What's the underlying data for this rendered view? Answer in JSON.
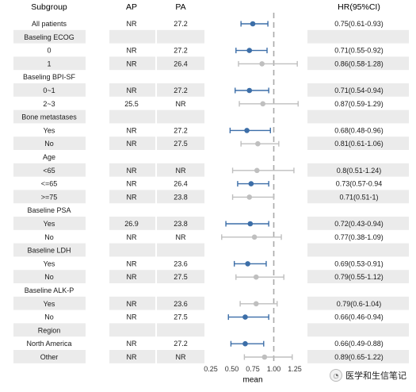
{
  "chart_data": {
    "type": "forest",
    "headers": {
      "subgroup": "Subgroup",
      "ap": "AP",
      "pa": "PA",
      "hr": "HR(95%CI)"
    },
    "xlabel": "mean",
    "xlim": [
      0.2,
      1.32
    ],
    "xticks": [
      0.25,
      0.5,
      0.75,
      1.0,
      1.25
    ],
    "xtick_labels": [
      "0.25",
      "0.50",
      "0.75",
      "1.00",
      "1.25"
    ],
    "reference_line": 1.0,
    "colors": {
      "significant": "#3c6ea8",
      "nonsignificant": "#bfbfbf",
      "band": "#ebebeb",
      "refline": "#a9a9a9"
    },
    "rows": [
      {
        "label": "All patients",
        "indent": true,
        "ap": "NR",
        "pa": "27.2",
        "hr": 0.75,
        "lo": 0.61,
        "hi": 0.93,
        "hr_text": "0.75(0.61-0.93)",
        "sig": true
      },
      {
        "label": "Baseling ECOG",
        "group": true
      },
      {
        "label": "0",
        "indent": true,
        "ap": "NR",
        "pa": "27.2",
        "hr": 0.71,
        "lo": 0.55,
        "hi": 0.92,
        "hr_text": "0.71(0.55-0.92)",
        "sig": true
      },
      {
        "label": "1",
        "indent": true,
        "ap": "NR",
        "pa": "26.4",
        "hr": 0.86,
        "lo": 0.58,
        "hi": 1.28,
        "hr_text": "0.86(0.58-1.28)",
        "sig": false
      },
      {
        "label": "Baseling BPI-SF",
        "group": true
      },
      {
        "label": "0~1",
        "indent": true,
        "ap": "NR",
        "pa": "27.2",
        "hr": 0.71,
        "lo": 0.54,
        "hi": 0.94,
        "hr_text": "0.71(0.54-0.94)",
        "sig": true
      },
      {
        "label": "2~3",
        "indent": true,
        "ap": "25.5",
        "pa": "NR",
        "hr": 0.87,
        "lo": 0.59,
        "hi": 1.29,
        "hr_text": "0.87(0.59-1.29)",
        "sig": false
      },
      {
        "label": "Bone metastases",
        "group": true
      },
      {
        "label": "Yes",
        "indent": true,
        "ap": "NR",
        "pa": "27.2",
        "hr": 0.68,
        "lo": 0.48,
        "hi": 0.96,
        "hr_text": "0.68(0.48-0.96)",
        "sig": true
      },
      {
        "label": "No",
        "indent": true,
        "ap": "NR",
        "pa": "27.5",
        "hr": 0.81,
        "lo": 0.61,
        "hi": 1.06,
        "hr_text": "0.81(0.61-1.06)",
        "sig": false
      },
      {
        "label": "Age",
        "group": true
      },
      {
        "label": "<65",
        "indent": true,
        "ap": "NR",
        "pa": "NR",
        "hr": 0.8,
        "lo": 0.51,
        "hi": 1.24,
        "hr_text": "0.8(0.51-1.24)",
        "sig": false
      },
      {
        "label": "<=65",
        "indent": true,
        "ap": "NR",
        "pa": "26.4",
        "hr": 0.73,
        "lo": 0.57,
        "hi": 0.94,
        "hr_text": "0.73(0.57-0.94",
        "sig": true
      },
      {
        "label": ">=75",
        "indent": true,
        "ap": "NR",
        "pa": "23.8",
        "hr": 0.71,
        "lo": 0.51,
        "hi": 1.0,
        "hr_text": "0.71(0.51-1)",
        "sig": false
      },
      {
        "label": "Baseline PSA",
        "group": true
      },
      {
        "label": "Yes",
        "indent": true,
        "ap": "26.9",
        "pa": "23.8",
        "hr": 0.72,
        "lo": 0.43,
        "hi": 0.94,
        "hr_text": "0.72(0.43-0.94)",
        "sig": true
      },
      {
        "label": "No",
        "indent": true,
        "ap": "NR",
        "pa": "NR",
        "hr": 0.77,
        "lo": 0.38,
        "hi": 1.09,
        "hr_text": "0.77(0.38-1.09)",
        "sig": false
      },
      {
        "label": "Baseline LDH",
        "group": true
      },
      {
        "label": "Yes",
        "indent": true,
        "ap": "NR",
        "pa": "23.6",
        "hr": 0.69,
        "lo": 0.53,
        "hi": 0.91,
        "hr_text": "0.69(0.53-0.91)",
        "sig": true
      },
      {
        "label": "No",
        "indent": true,
        "ap": "NR",
        "pa": "27.5",
        "hr": 0.79,
        "lo": 0.55,
        "hi": 1.12,
        "hr_text": "0.79(0.55-1.12)",
        "sig": false
      },
      {
        "label": "Baseline ALK-P",
        "group": true
      },
      {
        "label": "Yes",
        "indent": true,
        "ap": "NR",
        "pa": "23.6",
        "hr": 0.79,
        "lo": 0.6,
        "hi": 1.04,
        "hr_text": "0.79(0.6-1.04)",
        "sig": false
      },
      {
        "label": "No",
        "indent": true,
        "ap": "NR",
        "pa": "27.5",
        "hr": 0.66,
        "lo": 0.46,
        "hi": 0.94,
        "hr_text": "0.66(0.46-0.94)",
        "sig": true
      },
      {
        "label": "Region",
        "group": true
      },
      {
        "label": "North America",
        "indent": true,
        "ap": "NR",
        "pa": "27.2",
        "hr": 0.66,
        "lo": 0.49,
        "hi": 0.88,
        "hr_text": "0.66(0.49-0.88)",
        "sig": true
      },
      {
        "label": "Other",
        "indent": true,
        "ap": "NR",
        "pa": "NR",
        "hr": 0.89,
        "lo": 0.65,
        "hi": 1.22,
        "hr_text": "0.89(0.65-1.22)",
        "sig": false
      }
    ]
  },
  "watermark": {
    "text": "医学和生信笔记",
    "icon": "wechat-logo-icon"
  }
}
